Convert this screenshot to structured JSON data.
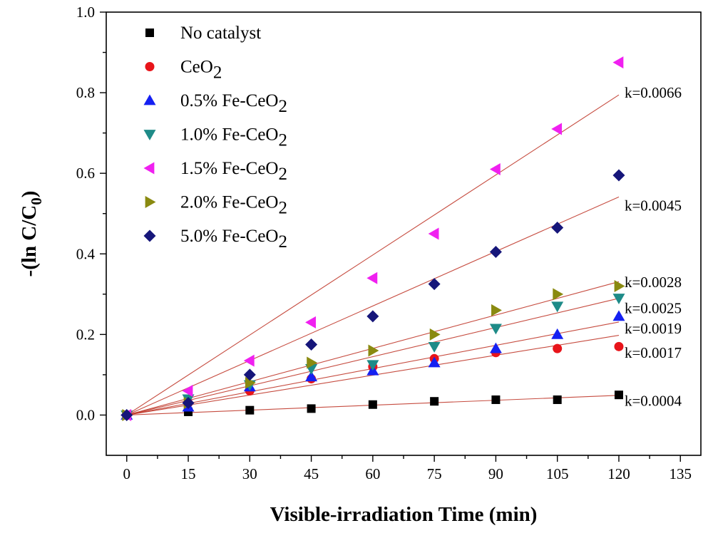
{
  "chart_data": {
    "type": "scatter",
    "xlabel": "Visible-irradiation Time (min)",
    "ylabel": "-(ln C/C0)",
    "ylabel_main": "-(ln C/C",
    "ylabel_sub": "0",
    "ylabel_end": ")",
    "xlim": [
      -5,
      140
    ],
    "ylim": [
      -0.1,
      1.0
    ],
    "xticks": [
      0,
      15,
      30,
      45,
      60,
      75,
      90,
      105,
      120,
      135
    ],
    "yticks": [
      0.0,
      0.2,
      0.4,
      0.6,
      0.8,
      1.0
    ],
    "ytick_labels": [
      "0.0",
      "0.2",
      "0.4",
      "0.6",
      "0.8",
      "1.0"
    ],
    "legend_position": "top-left",
    "x": [
      0,
      15,
      30,
      45,
      60,
      75,
      90,
      105,
      120
    ],
    "series": [
      {
        "name": "No catalyst",
        "name_main": "No catalyst",
        "name_sub": "",
        "marker": "square",
        "color": "#000000",
        "values": [
          0.0,
          0.008,
          0.012,
          0.016,
          0.026,
          0.034,
          0.038,
          0.038,
          0.05
        ],
        "k": 0.0004,
        "k_label": "k=0.0004"
      },
      {
        "name": "CeO2",
        "name_main": "CeO",
        "name_sub": "2",
        "marker": "circle",
        "color": "#e8141a",
        "values": [
          0.0,
          0.03,
          0.06,
          0.09,
          0.12,
          0.14,
          0.155,
          0.165,
          0.17
        ],
        "k": 0.0017,
        "k_label": "k=0.0017"
      },
      {
        "name": "0.5% Fe-CeO2",
        "name_main": "0.5% Fe-CeO",
        "name_sub": "2",
        "marker": "triangle-up",
        "color": "#1520f2",
        "values": [
          0.0,
          0.02,
          0.07,
          0.095,
          0.11,
          0.13,
          0.165,
          0.2,
          0.245
        ],
        "k": 0.0019,
        "k_label": "k=0.0019"
      },
      {
        "name": "1.0% Fe-CeO2",
        "name_main": "1.0% Fe-CeO",
        "name_sub": "2",
        "marker": "triangle-down",
        "color": "#1e8b88",
        "values": [
          0.0,
          0.04,
          0.075,
          0.115,
          0.125,
          0.17,
          0.215,
          0.27,
          0.29
        ],
        "k": 0.0025,
        "k_label": "k=0.0025"
      },
      {
        "name": "1.5% Fe-CeO2",
        "name_main": "1.5% Fe-CeO",
        "name_sub": "2",
        "marker": "triangle-left",
        "color": "#f020f0",
        "values": [
          0.0,
          0.06,
          0.135,
          0.23,
          0.34,
          0.45,
          0.61,
          0.71,
          0.875
        ],
        "k": 0.0066,
        "k_label": "k=0.0066"
      },
      {
        "name": "2.0% Fe-CeO2",
        "name_main": "2.0% Fe-CeO",
        "name_sub": "2",
        "marker": "triangle-right",
        "color": "#8a8a10",
        "values": [
          0.0,
          0.03,
          0.08,
          0.13,
          0.16,
          0.2,
          0.26,
          0.3,
          0.32
        ],
        "k": 0.0028,
        "k_label": "k=0.0028"
      },
      {
        "name": "5.0% Fe-CeO2",
        "name_main": "5.0% Fe-CeO",
        "name_sub": "2",
        "marker": "diamond",
        "color": "#16167a",
        "values": [
          0.0,
          0.03,
          0.1,
          0.175,
          0.245,
          0.325,
          0.405,
          0.465,
          0.595
        ],
        "k": 0.0045,
        "k_label": "k=0.0045"
      }
    ],
    "fit_line_color": "#c0392b"
  }
}
